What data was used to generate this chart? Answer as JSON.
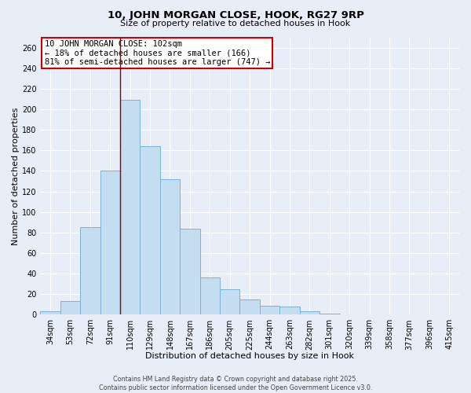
{
  "title": "10, JOHN MORGAN CLOSE, HOOK, RG27 9RP",
  "subtitle": "Size of property relative to detached houses in Hook",
  "xlabel": "Distribution of detached houses by size in Hook",
  "ylabel": "Number of detached properties",
  "bar_labels": [
    "34sqm",
    "53sqm",
    "72sqm",
    "91sqm",
    "110sqm",
    "129sqm",
    "148sqm",
    "167sqm",
    "186sqm",
    "205sqm",
    "225sqm",
    "244sqm",
    "263sqm",
    "282sqm",
    "301sqm",
    "320sqm",
    "339sqm",
    "358sqm",
    "377sqm",
    "396sqm",
    "415sqm"
  ],
  "bar_values": [
    3,
    13,
    85,
    140,
    209,
    164,
    132,
    84,
    36,
    25,
    15,
    9,
    8,
    3,
    1,
    0,
    0,
    0,
    0,
    0,
    0
  ],
  "bar_color": "#c5ddf0",
  "bar_edge_color": "#7ab3d4",
  "ylim": [
    0,
    270
  ],
  "yticks": [
    0,
    20,
    40,
    60,
    80,
    100,
    120,
    140,
    160,
    180,
    200,
    220,
    240,
    260
  ],
  "annotation_line1": "10 JOHN MORGAN CLOSE: 102sqm",
  "annotation_line2": "← 18% of detached houses are smaller (166)",
  "annotation_line3": "81% of semi-detached houses are larger (747) →",
  "vline_color": "#8b0000",
  "vline_x_index": 4,
  "annotation_box_facecolor": "#ffffff",
  "annotation_box_edgecolor": "#cc0000",
  "footer1": "Contains HM Land Registry data © Crown copyright and database right 2025.",
  "footer2": "Contains public sector information licensed under the Open Government Licence v3.0.",
  "bg_color": "#e8eef8",
  "grid_color": "#ffffff",
  "figsize": [
    6.0,
    5.0
  ],
  "dpi": 100,
  "title_fontsize": 9.5,
  "subtitle_fontsize": 8,
  "axis_label_fontsize": 8,
  "tick_fontsize": 7,
  "annotation_fontsize": 7.5,
  "footer_fontsize": 5.8
}
